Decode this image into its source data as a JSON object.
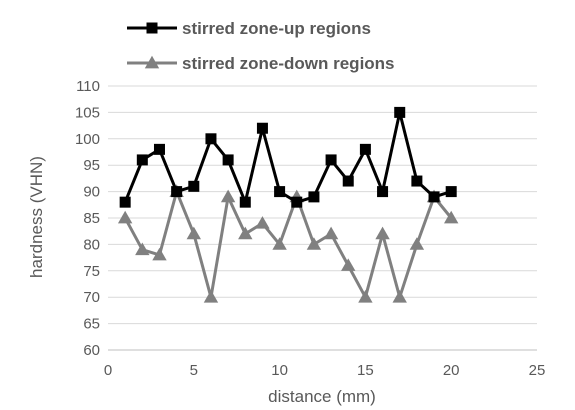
{
  "chart_data": {
    "type": "line",
    "xlabel": "distance (mm)",
    "ylabel": "hardness (VHN)",
    "xlim": [
      0,
      25
    ],
    "ylim": [
      60,
      110
    ],
    "x_ticks": [
      0,
      5,
      10,
      15,
      20,
      25
    ],
    "y_ticks": [
      60,
      65,
      70,
      75,
      80,
      85,
      90,
      95,
      100,
      105,
      110
    ],
    "grid": "horizontal",
    "legend_position": "top-left",
    "series": [
      {
        "name": "stirred zone-up regions",
        "marker": "square",
        "color": "#000000",
        "x": [
          1,
          2,
          3,
          4,
          5,
          6,
          7,
          8,
          9,
          10,
          11,
          12,
          13,
          14,
          15,
          16,
          17,
          18,
          19,
          20
        ],
        "values": [
          88,
          96,
          98,
          90,
          91,
          100,
          96,
          88,
          102,
          90,
          88,
          89,
          96,
          92,
          98,
          90,
          105,
          92,
          89,
          90
        ]
      },
      {
        "name": "stirred zone-down regions",
        "marker": "triangle",
        "color": "#808080",
        "x": [
          1,
          2,
          3,
          4,
          5,
          6,
          7,
          8,
          9,
          10,
          11,
          12,
          13,
          14,
          15,
          16,
          17,
          18,
          19,
          20
        ],
        "values": [
          85,
          79,
          78,
          90,
          82,
          70,
          89,
          82,
          84,
          80,
          89,
          80,
          82,
          76,
          70,
          82,
          70,
          80,
          89,
          85
        ]
      }
    ]
  }
}
